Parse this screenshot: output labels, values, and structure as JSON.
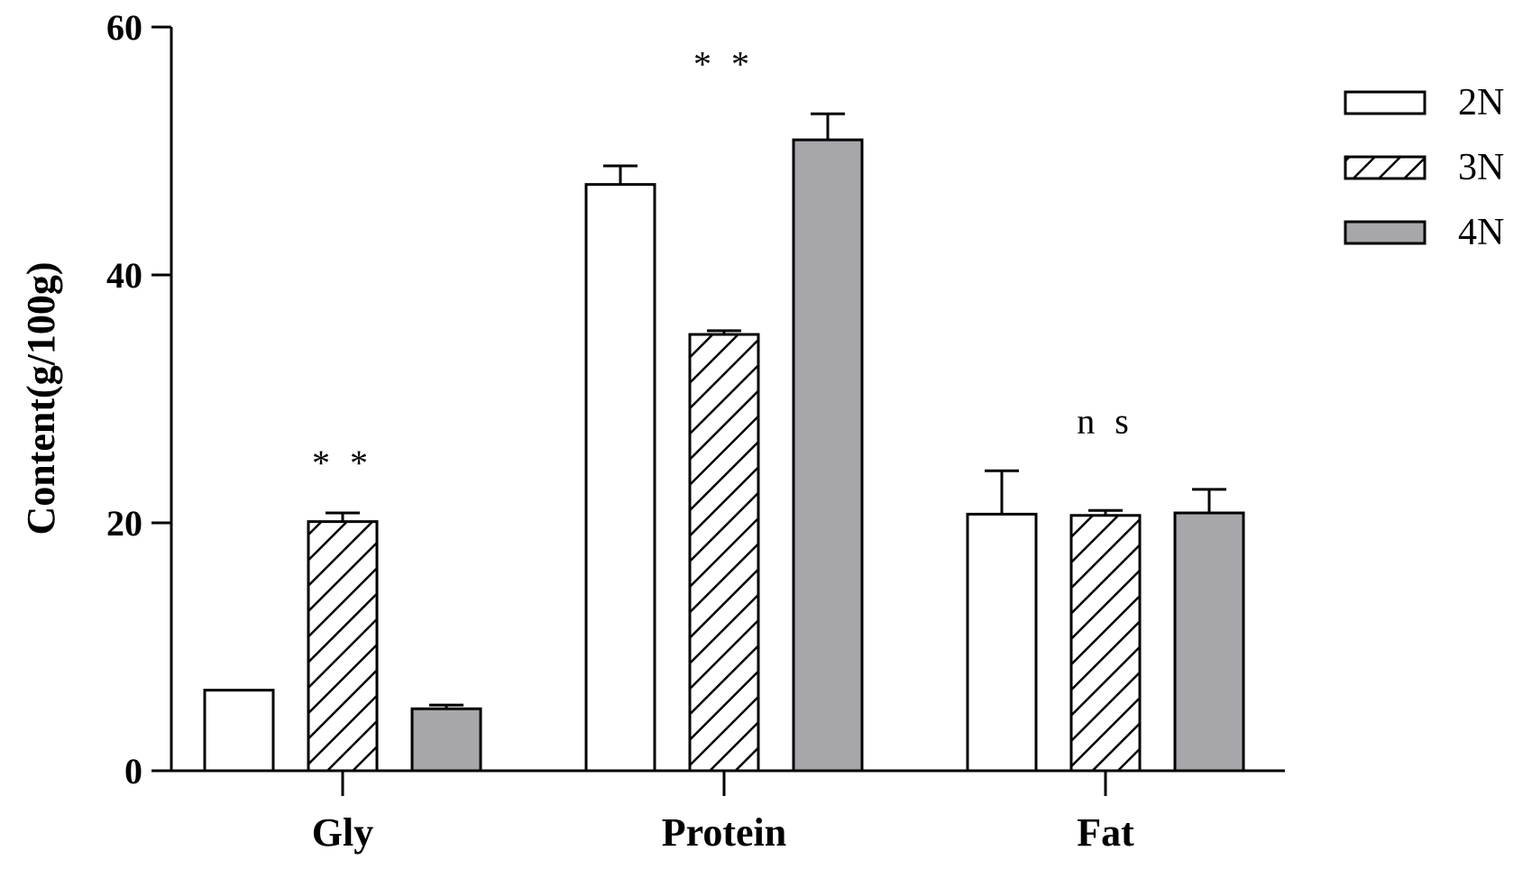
{
  "chart_data": {
    "type": "bar",
    "title": "",
    "xlabel": "",
    "ylabel": "Content(g/100g)",
    "ylim": [
      0,
      60
    ],
    "yticks": [
      "0",
      "20",
      "40",
      "60"
    ],
    "categories": [
      "Gly",
      "Protein",
      "Fat"
    ],
    "series": [
      {
        "name": "2N",
        "pattern": "open",
        "fill": "#ffffff",
        "values": [
          6.5,
          47.3,
          20.7
        ],
        "errors": [
          0.0,
          1.5,
          3.5
        ]
      },
      {
        "name": "3N",
        "pattern": "hatched",
        "fill": "#ffffff",
        "values": [
          20.1,
          35.2,
          20.6
        ],
        "errors": [
          0.7,
          0.3,
          0.4
        ]
      },
      {
        "name": "4N",
        "pattern": "solid",
        "fill": "#a7a6ab",
        "values": [
          5.0,
          50.9,
          20.8
        ],
        "errors": [
          0.3,
          2.1,
          1.9
        ]
      }
    ],
    "significance": [
      "* *",
      "* *",
      "n s"
    ],
    "legend_position": "top-right"
  }
}
